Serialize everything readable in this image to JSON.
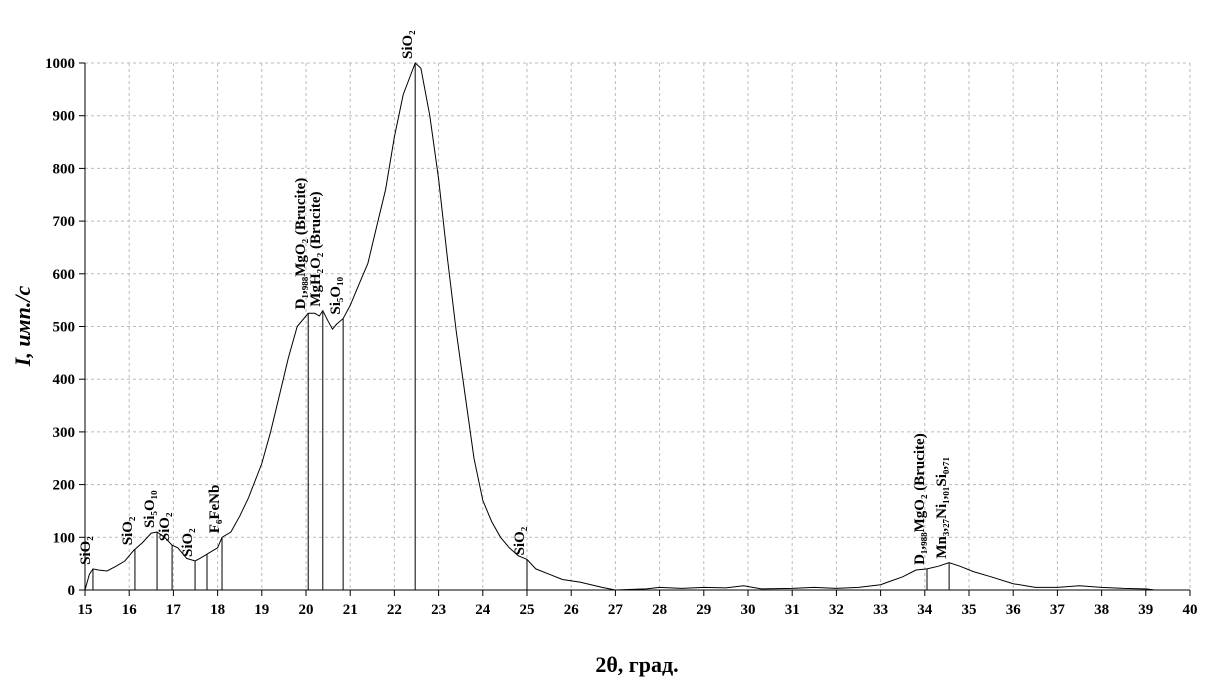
{
  "chart_data": {
    "type": "line",
    "xlabel": "2θ, град.",
    "ylabel": "I, имп./с",
    "xlim": [
      15,
      40
    ],
    "ylim": [
      0,
      1000
    ],
    "xticks": [
      15,
      16,
      17,
      18,
      19,
      20,
      21,
      22,
      23,
      24,
      25,
      26,
      27,
      28,
      29,
      30,
      31,
      32,
      33,
      34,
      35,
      36,
      37,
      38,
      39,
      40
    ],
    "yticks": [
      0,
      100,
      200,
      300,
      400,
      500,
      600,
      700,
      800,
      900,
      1000
    ],
    "grid": true,
    "series": [
      {
        "name": null,
        "color": "#000000",
        "x": [
          15.0,
          15.1,
          15.18,
          15.3,
          15.5,
          15.7,
          15.9,
          16.1,
          16.3,
          16.5,
          16.63,
          16.8,
          16.97,
          17.1,
          17.3,
          17.49,
          17.6,
          17.8,
          18.0,
          18.1,
          18.3,
          18.5,
          18.7,
          19.0,
          19.2,
          19.4,
          19.6,
          19.8,
          20.05,
          20.2,
          20.3,
          20.38,
          20.5,
          20.6,
          20.7,
          20.84,
          21.0,
          21.2,
          21.4,
          21.6,
          21.8,
          22.0,
          22.2,
          22.47,
          22.6,
          22.8,
          23.0,
          23.2,
          23.4,
          23.6,
          23.8,
          24.0,
          24.2,
          24.4,
          24.6,
          24.8,
          25.0,
          25.2,
          25.5,
          25.8,
          26.2,
          26.7,
          27.0,
          27.7,
          28.0,
          28.5,
          29.0,
          29.5,
          29.9,
          30.3,
          31.0,
          31.5,
          32.0,
          32.5,
          33.0,
          33.5,
          33.8,
          34.05,
          34.3,
          34.55,
          34.8,
          35.1,
          35.5,
          36.0,
          36.5,
          37.0,
          37.5,
          38.0,
          38.5,
          39.0,
          39.2
        ],
        "values": [
          0,
          30,
          40,
          38,
          36,
          45,
          55,
          75,
          90,
          108,
          110,
          100,
          85,
          80,
          60,
          55,
          60,
          70,
          80,
          100,
          110,
          140,
          175,
          240,
          300,
          370,
          440,
          500,
          525,
          525,
          520,
          530,
          510,
          495,
          505,
          515,
          540,
          580,
          620,
          690,
          760,
          860,
          940,
          1000,
          990,
          900,
          780,
          630,
          490,
          370,
          250,
          170,
          130,
          100,
          80,
          65,
          58,
          40,
          30,
          20,
          15,
          5,
          0,
          2,
          5,
          3,
          5,
          4,
          8,
          2,
          3,
          5,
          3,
          5,
          10,
          25,
          38,
          40,
          45,
          52,
          45,
          35,
          25,
          12,
          5,
          5,
          8,
          5,
          3,
          2,
          0
        ]
      }
    ],
    "peaks": {
      "x": [
        15.18,
        16.13,
        16.63,
        16.97,
        17.49,
        17.76,
        18.1,
        20.05,
        20.38,
        20.84,
        22.47,
        25.0,
        34.05,
        34.55
      ],
      "labels": [
        "SiO₂",
        "SiO₂",
        "Si₅O₁₀",
        "SiO₂",
        "SiO₂",
        null,
        "F₆FeNb",
        "D₁,₉₈₈MgO₂ (Brucite)",
        "MgH₂O₂ (Brucite)",
        "Si₅O₁₀",
        "SiO₂",
        "SiO₂",
        "D₁,₉₈₈MgO₂ (Brucite)",
        "Mn₃,₂₇Ni₁,₀₁Si₀,₇₁"
      ]
    }
  }
}
